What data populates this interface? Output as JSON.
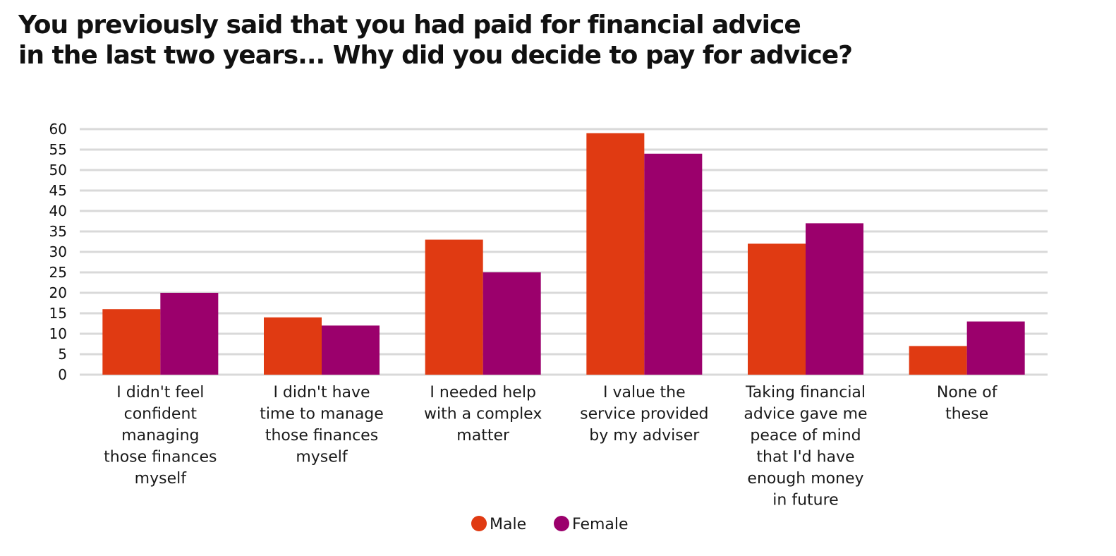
{
  "title_lines": [
    "You previously said that you had paid for financial advice",
    "in the last two years... Why did you decide to pay for advice?"
  ],
  "chart_data": {
    "type": "bar",
    "categories": [
      [
        "I didn't feel",
        "confident",
        "managing",
        "those finances",
        "myself"
      ],
      [
        "I didn't have",
        "time to manage",
        "those finances",
        "myself"
      ],
      [
        "I needed help",
        "with a complex",
        "matter"
      ],
      [
        "I value the",
        "service provided",
        "by my adviser"
      ],
      [
        "Taking financial",
        "advice gave me",
        "peace of mind",
        "that I'd have",
        "enough money",
        "in future"
      ],
      [
        "None of",
        "these"
      ]
    ],
    "series": [
      {
        "name": "Male",
        "color": "#e03a12",
        "values": [
          16,
          14,
          33,
          59,
          32,
          7
        ]
      },
      {
        "name": "Female",
        "color": "#9b006c",
        "values": [
          20,
          12,
          25,
          54,
          37,
          13
        ]
      }
    ],
    "yticks": [
      "0",
      "5",
      "10",
      "15",
      "20",
      "25",
      "30",
      "35",
      "40",
      "45",
      "50",
      "55",
      "60"
    ],
    "ylim": [
      0,
      60
    ],
    "grid": true,
    "legend": "bottom-center"
  }
}
